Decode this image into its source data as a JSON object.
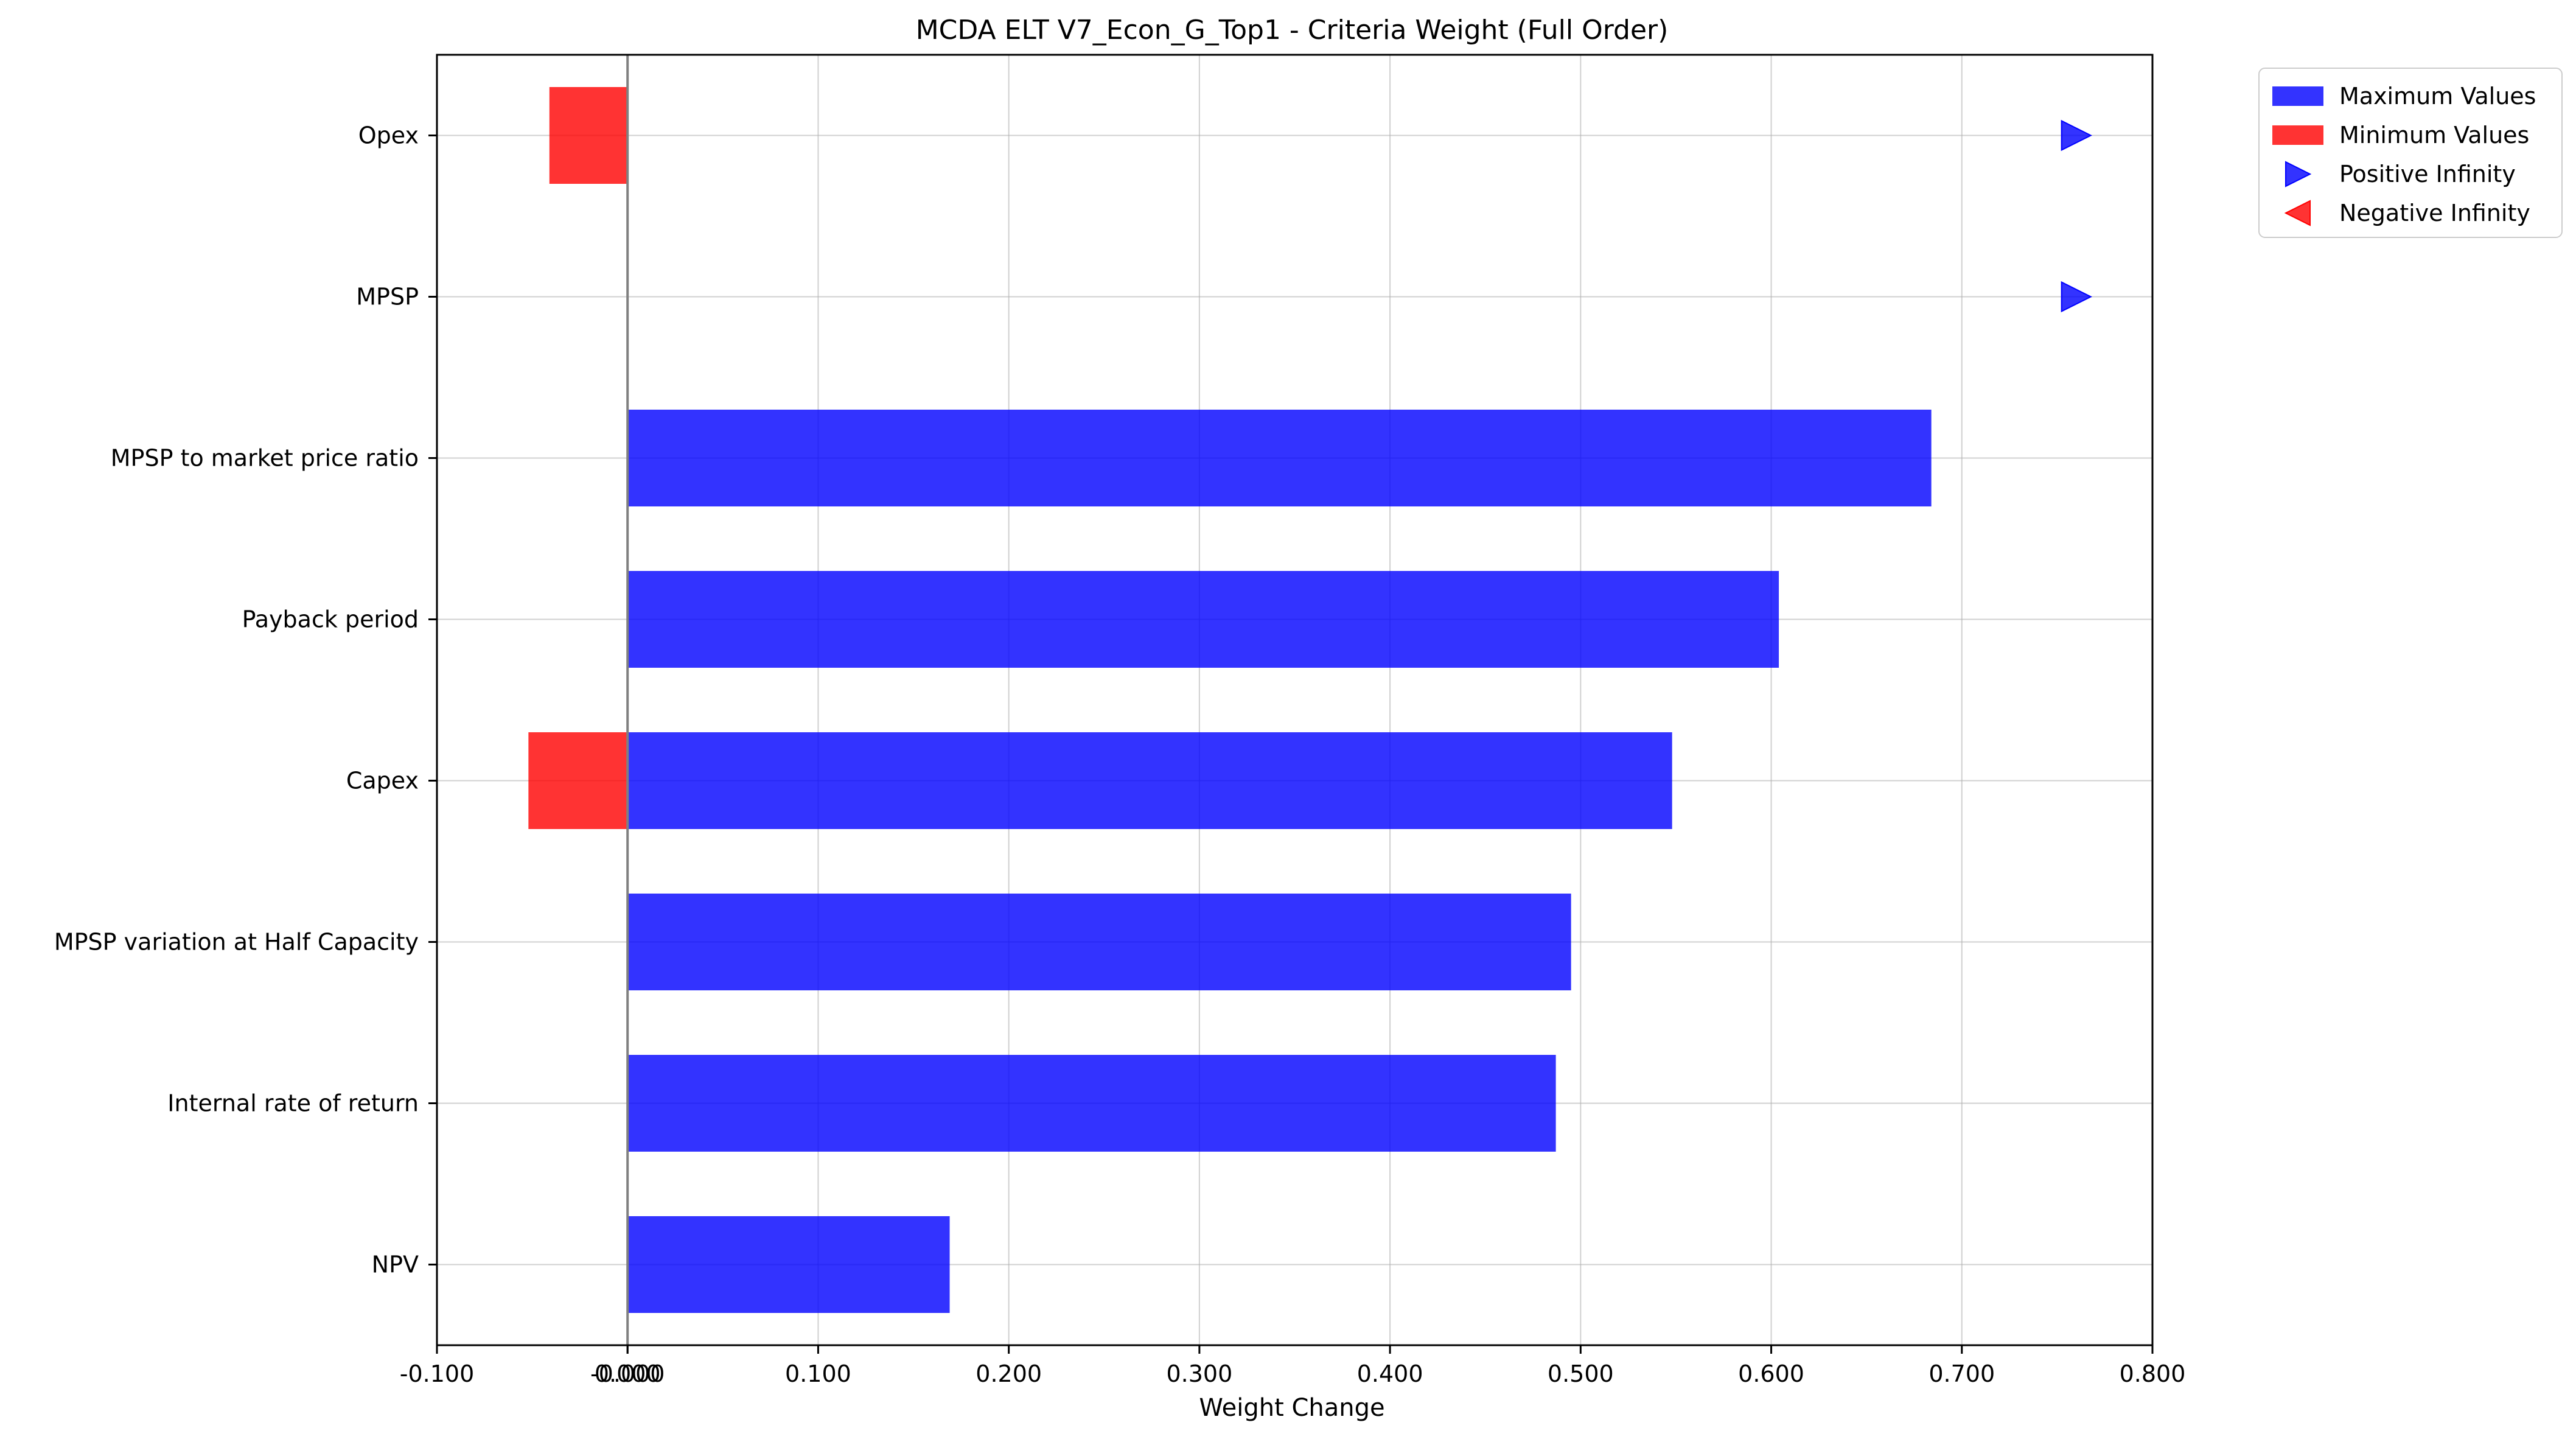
{
  "chart_data": {
    "type": "bar",
    "orientation": "horizontal",
    "title": "MCDA ELT V7_Econ_G_Top1 - Criteria Weight (Full Order)",
    "xlabel": "Weight Change",
    "ylabel": "",
    "xlim": [
      -0.1,
      0.8
    ],
    "x_ticks": [
      "-0.100",
      "-0.000",
      "0.000",
      "0.100",
      "0.200",
      "0.300",
      "0.400",
      "0.500",
      "0.600",
      "0.700",
      "0.800"
    ],
    "x_tick_values": [
      -0.1,
      -0.0,
      0.0,
      0.1,
      0.2,
      0.3,
      0.4,
      0.5,
      0.6,
      0.7,
      0.8
    ],
    "grid": true,
    "legend_position": "outside-top-right",
    "categories": [
      "Opex",
      "MPSP",
      "MPSP to market price ratio",
      "Payback period",
      "Capex",
      "MPSP variation at Half Capacity",
      "Internal rate of return",
      "NPV"
    ],
    "series": [
      {
        "name": "Maximum Values",
        "color": "#0000ff",
        "values": [
          null,
          null,
          0.684,
          0.604,
          0.548,
          0.495,
          0.487,
          0.169
        ]
      },
      {
        "name": "Minimum Values",
        "color": "#ff0000",
        "values": [
          -0.041,
          null,
          null,
          null,
          -0.052,
          null,
          null,
          null
        ]
      }
    ],
    "markers": [
      {
        "name": "Positive Infinity",
        "color": "#0000ff",
        "symbol": "triangle-right",
        "categories": [
          "Opex",
          "MPSP"
        ],
        "x": 0.76
      },
      {
        "name": "Negative Infinity",
        "color": "#ff0000",
        "symbol": "triangle-left",
        "categories": [],
        "x": null
      }
    ]
  }
}
